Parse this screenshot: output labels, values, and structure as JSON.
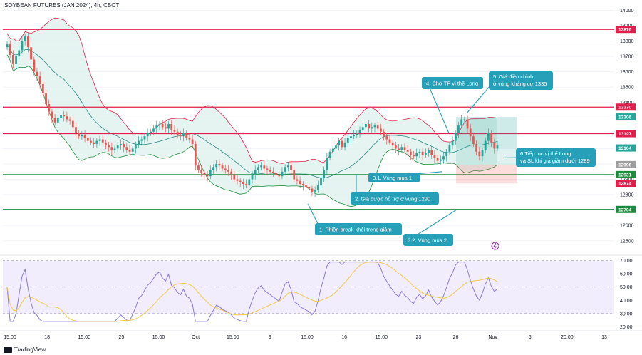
{
  "header": {
    "title": "SOYBEAN FUTURES (JAN 2024), 4h, CBOT"
  },
  "footer": {
    "brand": "TradingView"
  },
  "colors": {
    "up": "#26a69a",
    "down": "#ef5350",
    "resistance": "#e0204a",
    "support": "#1e8e3e",
    "bb_fill": "#dff1ec",
    "bb_band": "#e0204a",
    "annotation_bg": "#26a0b8",
    "rsi_line": "#8a7bd6",
    "rsi_ma": "#f2c94c"
  },
  "chart_data": [
    {
      "type": "candlestick",
      "title": "SOYBEAN FUTURES (JAN 2024), 4h, CBOT",
      "x_tick_labels": [
        "15:00",
        "18",
        "15:00",
        "25",
        "15:00",
        "Oct",
        "15:00",
        "9",
        "15:00",
        "16",
        "15:00",
        "23",
        "26",
        "Nov",
        "6",
        "20:00",
        "13"
      ],
      "y_ticks": [
        12500,
        12600,
        12700,
        12800,
        12900,
        13000,
        13100,
        13200,
        13300,
        13400,
        13500,
        13600,
        13700,
        13800,
        13900,
        14000
      ],
      "ylim": [
        12420,
        14030
      ],
      "close_series": [
        13780,
        13710,
        13650,
        13700,
        13740,
        13800,
        13830,
        13760,
        13680,
        13600,
        13570,
        13520,
        13460,
        13390,
        13340,
        13300,
        13270,
        13300,
        13320,
        13310,
        13290,
        13280,
        13240,
        13200,
        13180,
        13190,
        13170,
        13150,
        13140,
        13130,
        13150,
        13160,
        13140,
        13120,
        13110,
        13090,
        13100,
        13120,
        13130,
        13110,
        13090,
        13080,
        13100,
        13120,
        13150,
        13160,
        13180,
        13200,
        13210,
        13230,
        13250,
        13260,
        13240,
        13230,
        13260,
        13220,
        13210,
        13190,
        13180,
        13200,
        13170,
        13160,
        13130,
        12990,
        12960,
        12940,
        12930,
        12920,
        12960,
        12980,
        13000,
        12990,
        12970,
        12960,
        12950,
        12930,
        12900,
        12890,
        12880,
        12870,
        12860,
        12900,
        12930,
        12960,
        12980,
        12990,
        12970,
        12960,
        12950,
        12940,
        12930,
        12920,
        12950,
        12980,
        12990,
        12960,
        12900,
        12890,
        12870,
        12860,
        12850,
        12840,
        12820,
        12830,
        12860,
        12910,
        12960,
        13040,
        13080,
        13100,
        13120,
        13150,
        13110,
        13140,
        13170,
        13180,
        13190,
        13200,
        13220,
        13240,
        13260,
        13230,
        13240,
        13250,
        13230,
        13210,
        13180,
        13160,
        13140,
        13120,
        13100,
        13090,
        13110,
        13090,
        13080,
        13060,
        13050,
        13070,
        13080,
        13060,
        13070,
        13090,
        13060,
        13040,
        13020,
        13030,
        13050,
        13080,
        13120,
        13150,
        13200,
        13250,
        13290,
        13290,
        13230,
        13180,
        13130,
        13080,
        13050,
        13090,
        13150,
        13200,
        13140,
        13100,
        13120
      ],
      "series": [
        {
          "name": "Close",
          "note": "4h candles"
        }
      ],
      "horizontal_levels": [
        {
          "label": "13876",
          "value": 13876,
          "kind": "resistance"
        },
        {
          "label": "13370",
          "value": 13370,
          "kind": "resistance"
        },
        {
          "label": "13197",
          "value": 13197,
          "kind": "resistance"
        },
        {
          "label": "12931",
          "value": 12931,
          "kind": "support"
        },
        {
          "label": "12704",
          "value": 12704,
          "kind": "support"
        }
      ],
      "price_labels": [
        {
          "label": "13306",
          "value": 13306,
          "color": "#26a69a"
        },
        {
          "label": "13104",
          "value": 13104,
          "color": "#26a69a"
        },
        {
          "label": "12996",
          "value": 12996,
          "color": "#9e9e9e"
        },
        {
          "label": "12874",
          "value": 12874,
          "color": "#e0204a"
        }
      ],
      "annotations": [
        {
          "text": "1. Phiên break khỏi trend giảm"
        },
        {
          "text": "2. Giá được hỗ trợ ở vùng 1290"
        },
        {
          "text": "3.1. Vùng mua 1"
        },
        {
          "text": "3.2. Vùng mua 2"
        },
        {
          "text": "4. Chờ TP vị thế Long"
        },
        {
          "text": "5. Giá điều chỉnh",
          "line2": "ở vùng kháng cự 1335"
        },
        {
          "text": "6.Tiếp tục vị thế Long",
          "line2": "và SL khi giá giảm dưới 1289"
        }
      ]
    },
    {
      "type": "line",
      "panel": "RSI",
      "y_ticks": [
        20,
        30,
        40,
        50,
        60,
        70
      ],
      "y_tick_labels": [
        "20.00",
        "30.00",
        "40.00",
        "50.00",
        "60.00",
        "70.00"
      ],
      "ylim": [
        18,
        72
      ],
      "bands": [
        30,
        70
      ],
      "midline": 50
    }
  ]
}
